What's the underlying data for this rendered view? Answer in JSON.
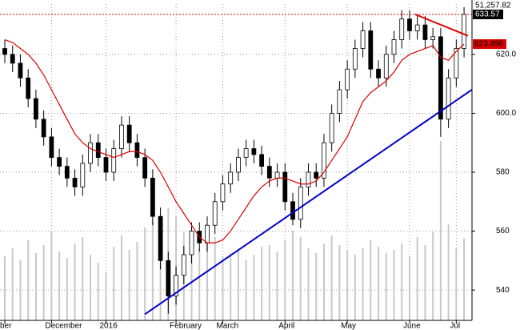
{
  "chart_data": {
    "type": "candlestick",
    "categories": [
      "ber",
      null,
      null,
      null,
      null,
      null,
      "December",
      null,
      null,
      null,
      null,
      null,
      null,
      "2016",
      null,
      null,
      null,
      null,
      null,
      null,
      null,
      null,
      "February",
      null,
      null,
      null,
      null,
      null,
      "March",
      null,
      null,
      null,
      null,
      null,
      null,
      null,
      "April",
      null,
      null,
      null,
      null,
      null,
      null,
      null,
      "May",
      null,
      null,
      null,
      null,
      null,
      null,
      null,
      "June",
      null,
      null,
      null,
      null,
      null,
      "Jul",
      null
    ],
    "open": [
      622,
      620,
      617,
      612,
      605,
      598,
      592,
      585,
      582,
      578,
      575,
      583,
      590,
      585,
      580,
      588,
      596,
      590,
      585,
      578,
      565,
      550,
      538,
      545,
      552,
      560,
      556,
      562,
      570,
      576,
      580,
      585,
      588,
      586,
      582,
      578,
      580,
      570,
      564,
      575,
      580,
      578,
      590,
      600,
      608,
      615,
      622,
      628,
      615,
      612,
      620,
      625,
      632,
      628,
      630,
      625,
      626,
      598,
      612,
      622
    ],
    "high": [
      625,
      623,
      620,
      615,
      608,
      601,
      595,
      588,
      585,
      581,
      586,
      593,
      593,
      588,
      591,
      599,
      599,
      593,
      588,
      581,
      568,
      553,
      548,
      555,
      563,
      563,
      565,
      573,
      579,
      583,
      588,
      591,
      591,
      589,
      585,
      583,
      583,
      573,
      578,
      583,
      583,
      593,
      603,
      611,
      618,
      625,
      631,
      631,
      618,
      623,
      628,
      635,
      635,
      633,
      633,
      629,
      629,
      615,
      625,
      636
    ],
    "low": [
      617,
      614,
      609,
      602,
      595,
      589,
      582,
      579,
      575,
      572,
      572,
      580,
      582,
      577,
      577,
      585,
      587,
      582,
      575,
      562,
      547,
      532,
      535,
      542,
      549,
      553,
      553,
      559,
      567,
      573,
      577,
      582,
      583,
      579,
      575,
      575,
      567,
      562,
      561,
      572,
      575,
      575,
      587,
      597,
      605,
      612,
      619,
      612,
      609,
      609,
      617,
      622,
      625,
      625,
      622,
      622,
      592,
      595,
      609,
      619
    ],
    "close": [
      620,
      617,
      612,
      605,
      598,
      592,
      585,
      582,
      578,
      575,
      583,
      590,
      585,
      580,
      588,
      596,
      590,
      585,
      578,
      565,
      550,
      538,
      545,
      552,
      560,
      556,
      562,
      570,
      576,
      580,
      585,
      588,
      586,
      582,
      578,
      580,
      570,
      564,
      575,
      580,
      578,
      590,
      600,
      608,
      615,
      622,
      628,
      615,
      612,
      620,
      625,
      632,
      628,
      630,
      625,
      626,
      598,
      612,
      622,
      633.57
    ],
    "moving_average": [
      625,
      624,
      622,
      620,
      617,
      613,
      608,
      603,
      598,
      593,
      590,
      588,
      587,
      586,
      585,
      586,
      587,
      587,
      586,
      584,
      580,
      575,
      570,
      566,
      562,
      558,
      556,
      556,
      557,
      560,
      564,
      568,
      572,
      575,
      577,
      578,
      578,
      577,
      576,
      576,
      577,
      580,
      584,
      588,
      592,
      598,
      604,
      607,
      609,
      611,
      614,
      618,
      620,
      621,
      622,
      623,
      619,
      618,
      621,
      623.498
    ],
    "volume": [
      40000,
      45000,
      38000,
      50000,
      42000,
      47000,
      55000,
      43000,
      39000,
      48000,
      52000,
      41000,
      36000,
      30000,
      46000,
      53000,
      44000,
      49000,
      58000,
      62000,
      60000,
      70000,
      65000,
      55000,
      50000,
      45000,
      48000,
      52000,
      40000,
      42000,
      44000,
      38000,
      41000,
      46000,
      47000,
      43000,
      50000,
      56000,
      52000,
      45000,
      42000,
      48000,
      53000,
      47000,
      44000,
      41000,
      45000,
      50000,
      46000,
      42000,
      44000,
      48000,
      40000,
      52000,
      47000,
      55000,
      112000,
      60000,
      45000,
      51257.82
    ],
    "volume_label": "51,257.82",
    "last_label": "633.57",
    "ma_label": "623.498",
    "resistance": 633.57,
    "trendlines": [
      {
        "color": "#0000cc",
        "x": [
          18,
          60
        ],
        "y": [
          531.8,
          608
        ]
      },
      {
        "color": "#dd0000",
        "x": [
          52.7,
          59.5
        ],
        "y": [
          633.6,
          626.3
        ]
      }
    ],
    "ylim": [
      529.7,
      637.1
    ],
    "yticks": [
      {
        "value": 540,
        "label": "540"
      },
      {
        "value": 560,
        "label": "560"
      },
      {
        "value": 580,
        "label": "580"
      },
      {
        "value": 600,
        "label": "600.0"
      },
      {
        "value": 620,
        "label": "620.0"
      }
    ],
    "vlim": [
      0,
      100000
    ],
    "up_color": "#ffffff",
    "down_color": "#000000",
    "ma_color": "#dd0000",
    "volume_color": "#c8c8c8",
    "grid": true
  }
}
